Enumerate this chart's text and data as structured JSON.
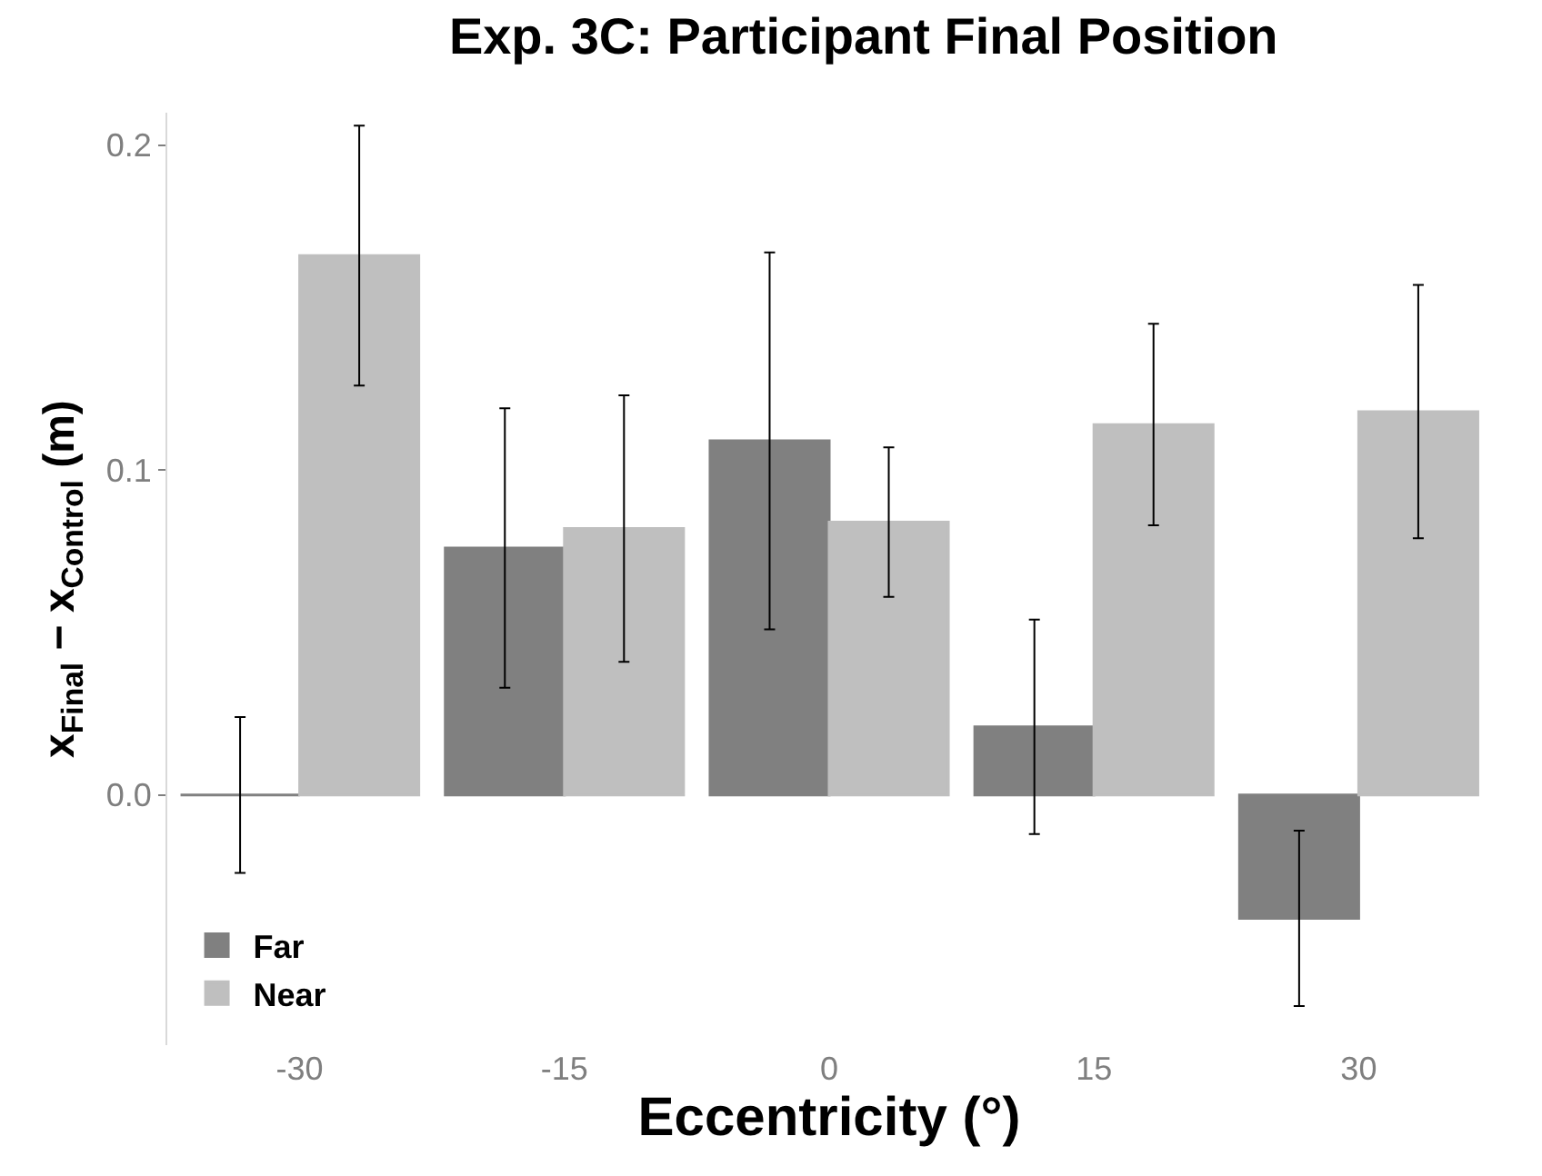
{
  "chart_data": {
    "type": "bar",
    "title": "Exp. 3C: Participant Final Position",
    "xlabel": "Eccentricity (°)",
    "ylabel": "x$_{Final}$ − x$_{Control}$ (m)",
    "categories": [
      "-30",
      "-15",
      "0",
      "15",
      "30"
    ],
    "series": [
      {
        "name": "Far",
        "color": "#808080",
        "values": [
          0,
          0.076,
          0.109,
          0.021,
          -0.038
        ],
        "errors": [
          0.024,
          0.043,
          0.058,
          0.033,
          0.027
        ]
      },
      {
        "name": "Near",
        "color": "#bfbfbf",
        "values": [
          0.166,
          0.082,
          0.084,
          0.114,
          0.118
        ],
        "errors": [
          0.04,
          0.041,
          0.023,
          0.031,
          0.039
        ]
      }
    ],
    "ylim": [
      -0.077,
      0.21
    ],
    "yticks": [
      {
        "value": 0,
        "label": "0.0"
      },
      {
        "value": 0.1,
        "label": "0.1"
      },
      {
        "value": 0.2,
        "label": "0.2"
      }
    ],
    "grid": false,
    "legend": "bottom left"
  }
}
